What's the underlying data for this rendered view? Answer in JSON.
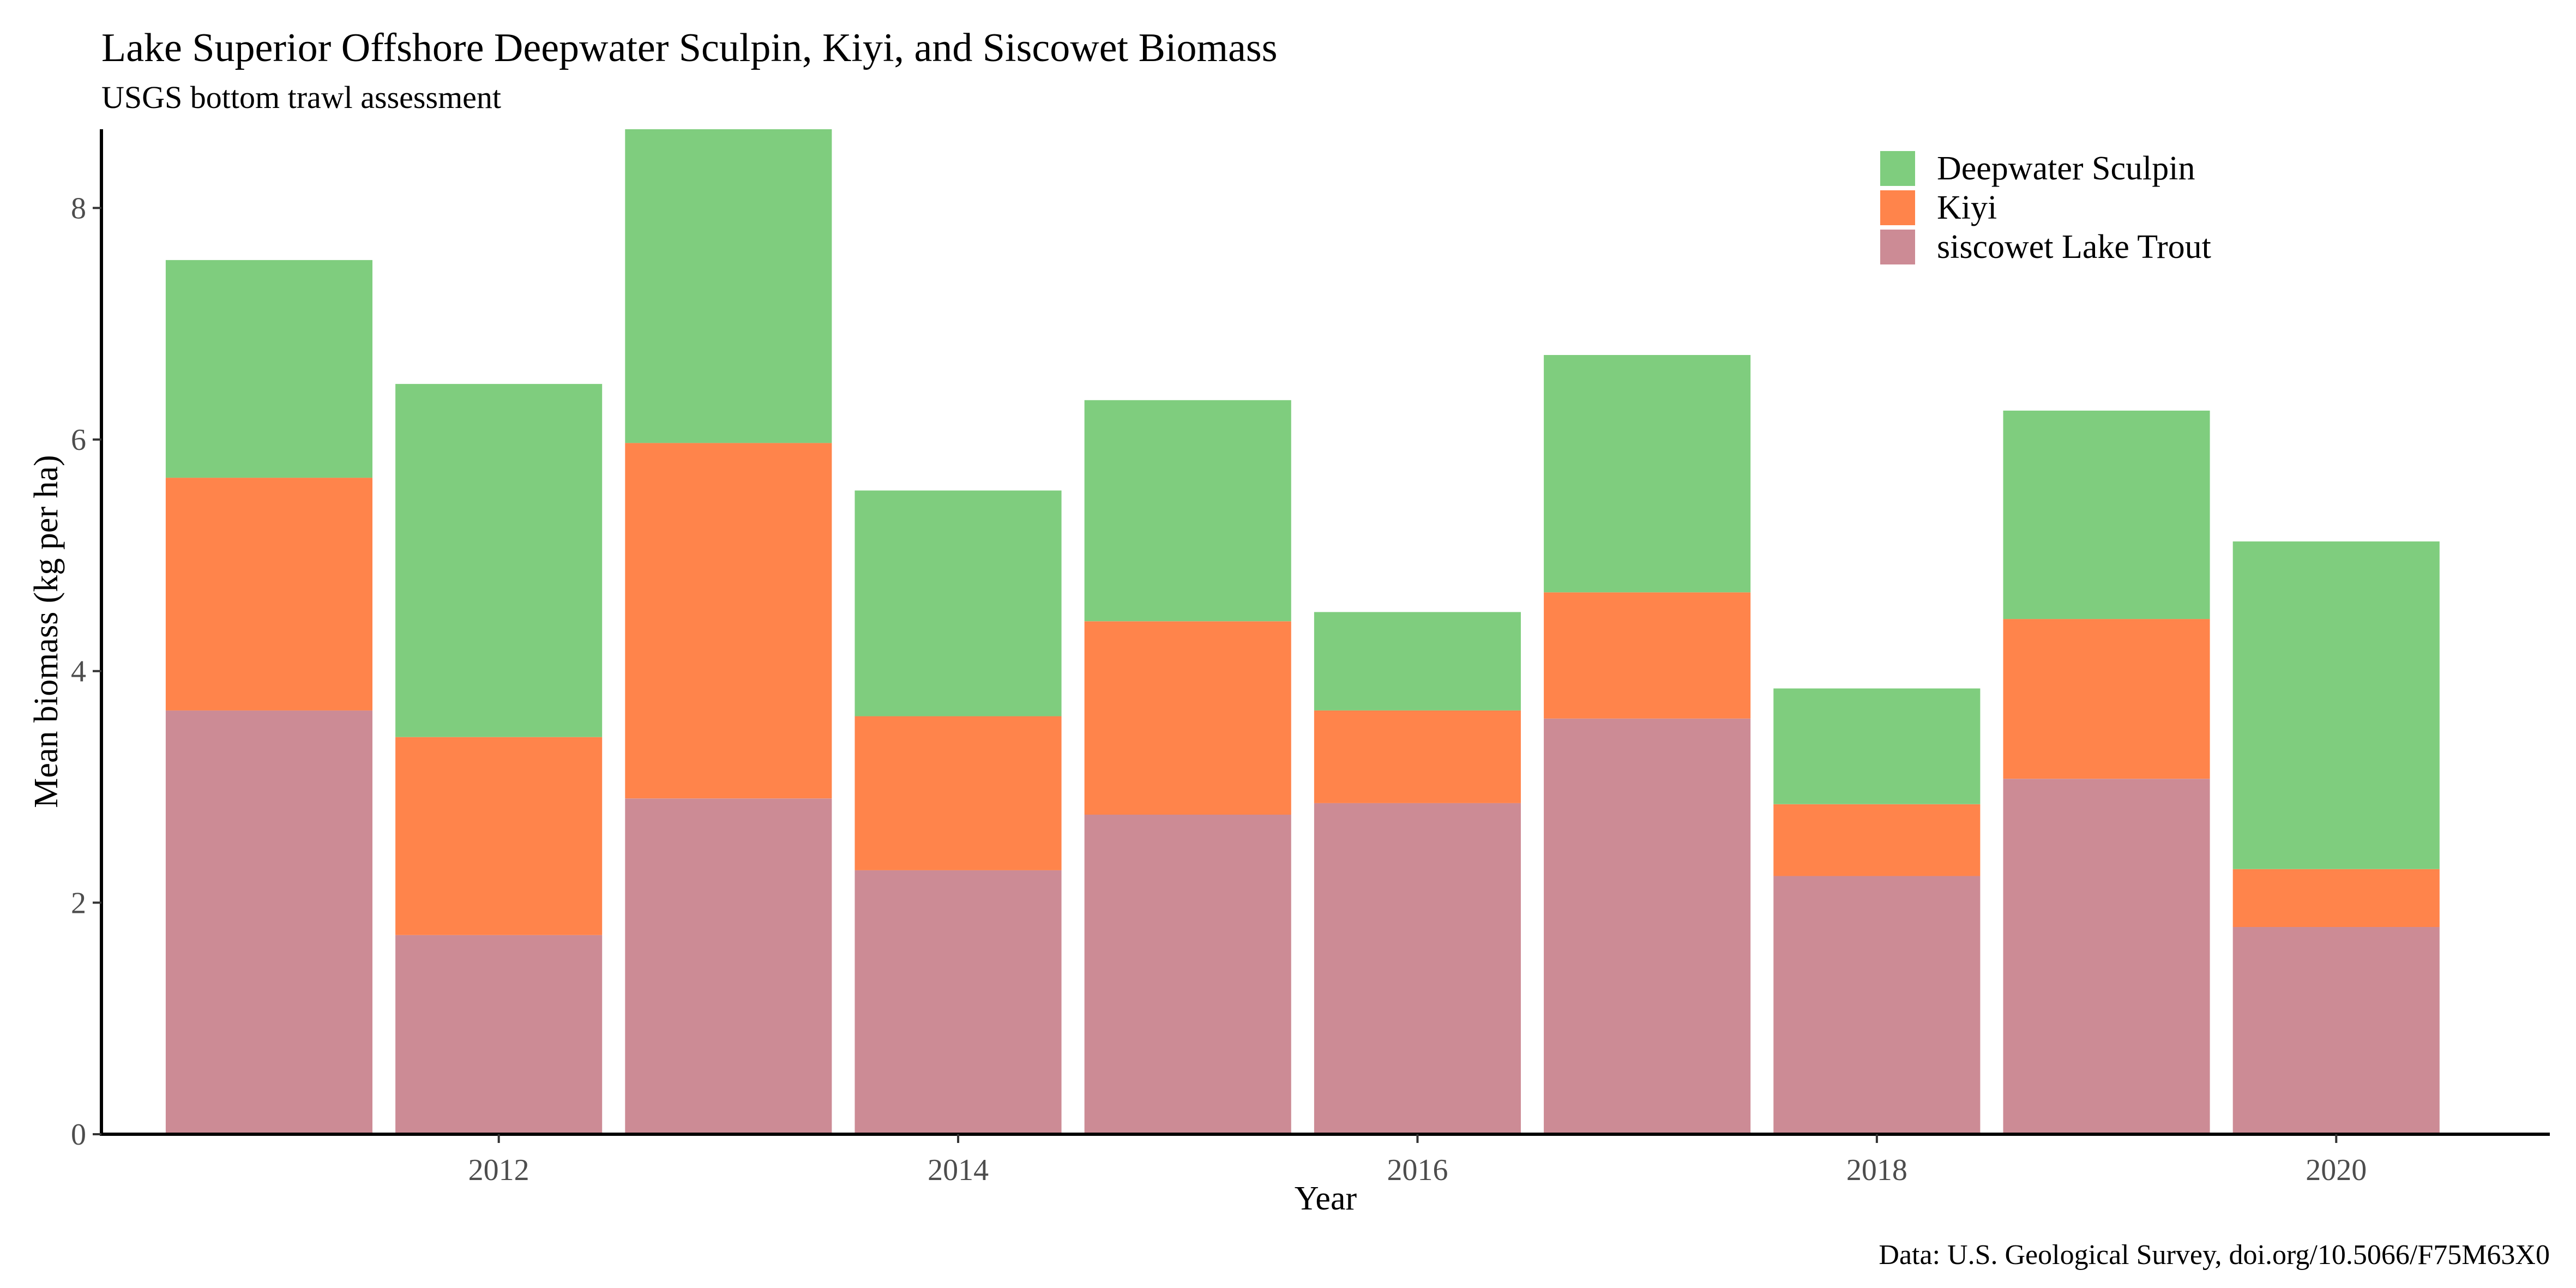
{
  "chart_data": {
    "type": "bar",
    "stacked": true,
    "title": "Lake Superior Offshore Deepwater Sculpin, Kiyi, and Siscowet Biomass",
    "subtitle": "USGS bottom trawl assessment",
    "xlabel": "Year",
    "ylabel": "Mean biomass (kg per ha)",
    "caption": "Data: U.S. Geological Survey, doi.org/10.5066/F75M63X0",
    "x": [
      2011,
      2012,
      2013,
      2014,
      2015,
      2016,
      2017,
      2018,
      2019,
      2020
    ],
    "xlim": [
      2010.27,
      2020.93
    ],
    "xticks": [
      2012,
      2014,
      2016,
      2018,
      2020
    ],
    "ylim": [
      0,
      8.68
    ],
    "yticks": [
      0,
      2,
      4,
      6,
      8
    ],
    "grid": false,
    "legend_position": "top-right",
    "series": [
      {
        "name": "siscowet Lake Trout",
        "color": "#CC8B95",
        "values": [
          3.66,
          1.72,
          2.9,
          2.28,
          2.76,
          2.86,
          3.59,
          2.23,
          3.07,
          1.79
        ]
      },
      {
        "name": "Kiyi",
        "color": "#FF844B",
        "values": [
          2.01,
          1.71,
          3.07,
          1.33,
          1.67,
          0.8,
          1.09,
          0.62,
          1.38,
          0.5
        ]
      },
      {
        "name": "Deepwater Sculpin",
        "color": "#7FCD7E",
        "values": [
          1.88,
          3.05,
          2.71,
          1.95,
          1.91,
          0.85,
          2.05,
          1.0,
          1.8,
          2.83
        ]
      }
    ],
    "legend_order": [
      "Deepwater Sculpin",
      "Kiyi",
      "siscowet Lake Trout"
    ]
  }
}
